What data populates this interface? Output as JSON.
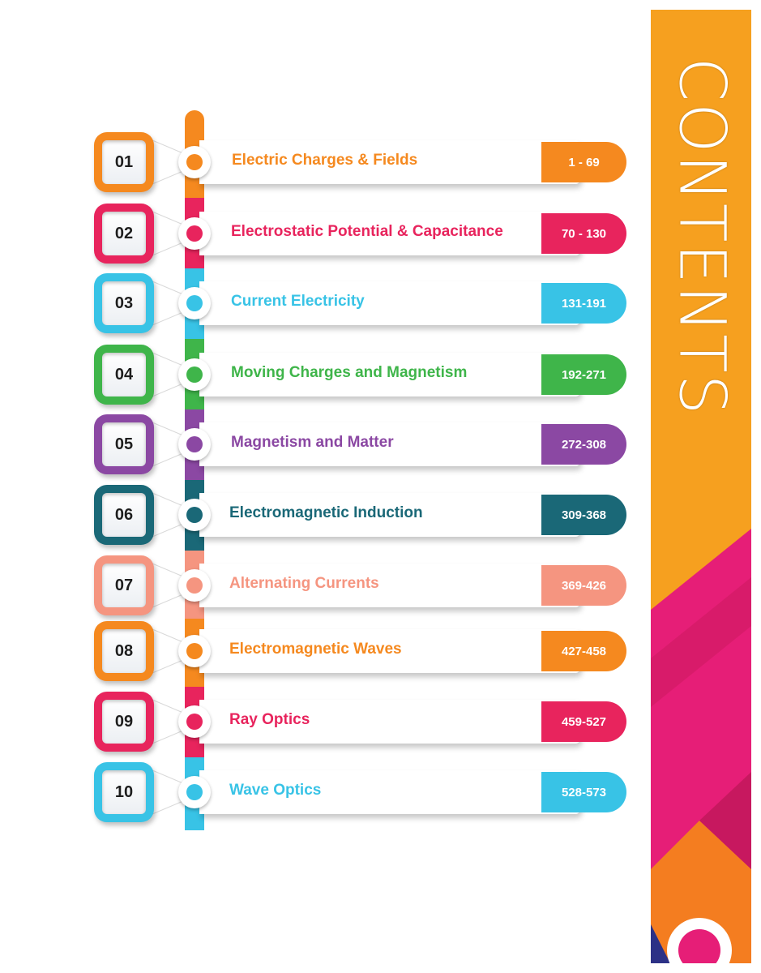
{
  "title": "CONTENTS",
  "colors": {
    "orange": "#f5891f",
    "pink": "#e8245d",
    "cyan": "#38c3e6",
    "green": "#3fb54a",
    "purple": "#8b48a3",
    "teal": "#1a6877",
    "salmon": "#f59580",
    "banner_orange": "#f6a01f",
    "banner_magenta": "#e61e77",
    "banner_navy": "#2c3186"
  },
  "chapters": [
    {
      "number": "01",
      "title": "Electric Charges & Fields",
      "pages": "1 - 69",
      "color": "#f5891f"
    },
    {
      "number": "02",
      "title": "Electrostatic Potential & Capacitance",
      "pages": "70 - 130",
      "color": "#e8245d"
    },
    {
      "number": "03",
      "title": "Current Electricity",
      "pages": "131-191",
      "color": "#38c3e6"
    },
    {
      "number": "04",
      "title": "Moving Charges and Magnetism",
      "pages": "192-271",
      "color": "#3fb54a"
    },
    {
      "number": "05",
      "title": "Magnetism and Matter",
      "pages": "272-308",
      "color": "#8b48a3"
    },
    {
      "number": "06",
      "title": "Electromagnetic Induction",
      "pages": "309-368",
      "color": "#1a6877"
    },
    {
      "number": "07",
      "title": "Alternating Currents",
      "pages": "369-426",
      "color": "#f59580"
    },
    {
      "number": "08",
      "title": "Electromagnetic Waves",
      "pages": "427-458",
      "color": "#f5891f"
    },
    {
      "number": "09",
      "title": "Ray Optics",
      "pages": "459-527",
      "color": "#e8245d"
    },
    {
      "number": "10",
      "title": "Wave Optics",
      "pages": "528-573",
      "color": "#38c3e6"
    }
  ]
}
